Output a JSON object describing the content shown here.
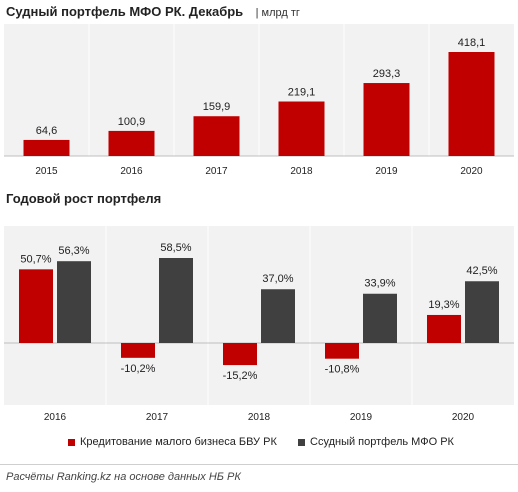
{
  "chart1": {
    "title": "Судный портфель МФО РК. Декабрь",
    "unit": "| млрд тг"
  },
  "chart2": {
    "title": "Годовой рост портфеля"
  },
  "legend": [
    {
      "label": "Кредитование малого бизнеса БВУ РК",
      "color": "#c00000"
    },
    {
      "label": "Ссудный портфель МФО РК",
      "color": "#404040"
    }
  ],
  "footer": "Расчёты Ranking.kz на основе данных НБ РК",
  "colors": {
    "red": "#c00000",
    "dark": "#404040",
    "panel": "#f2f2f2"
  },
  "chart_data": [
    {
      "type": "bar",
      "title": "Судный портфель МФО РК. Декабрь",
      "ylabel": "млрд тг",
      "categories": [
        "2015",
        "2016",
        "2017",
        "2018",
        "2019",
        "2020"
      ],
      "values": [
        64.6,
        100.9,
        159.9,
        219.1,
        293.3,
        418.1
      ],
      "value_labels": [
        "64,6",
        "100,9",
        "159,9",
        "219,1",
        "293,3",
        "418,1"
      ],
      "grid": false
    },
    {
      "type": "bar",
      "title": "Годовой рост портфеля",
      "categories": [
        "2016",
        "2017",
        "2018",
        "2019",
        "2020"
      ],
      "series": [
        {
          "name": "Кредитование малого бизнеса БВУ РК",
          "values": [
            50.7,
            -10.2,
            -15.2,
            -10.8,
            19.3
          ],
          "labels": [
            "50,7%",
            "-10,2%",
            "-15,2%",
            "-10,8%",
            "19,3%"
          ]
        },
        {
          "name": "Ссудный портфель МФО РК",
          "values": [
            56.3,
            58.5,
            37.0,
            33.9,
            42.5
          ],
          "labels": [
            "56,3%",
            "58,5%",
            "37,0%",
            "33,9%",
            "42,5%"
          ]
        }
      ],
      "grid": false
    }
  ]
}
